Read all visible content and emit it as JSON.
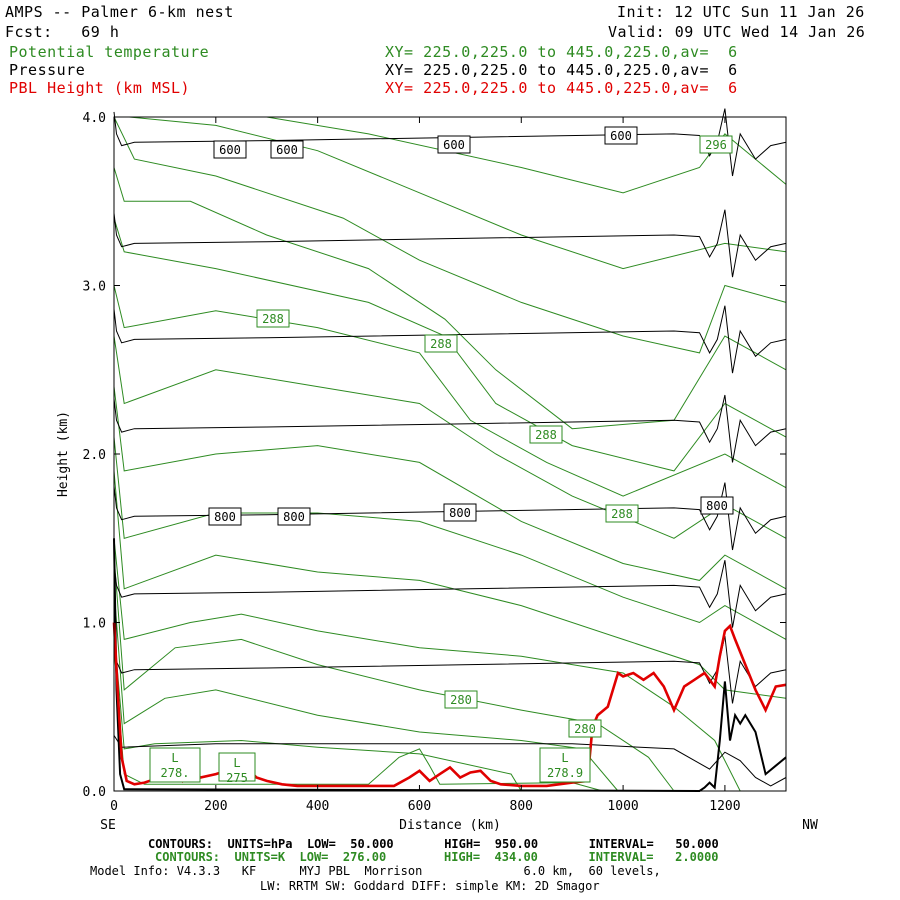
{
  "header": {
    "title": "AMPS -- Palmer 6-km nest",
    "fcst": "Fcst:   69 h",
    "init": "Init: 12 UTC Sun 11 Jan 26",
    "valid": "Valid: 09 UTC Wed 14 Jan 26",
    "fields": [
      {
        "name": "Potential temperature",
        "xy": "XY= 225.0,225.0 to 445.0,225.0,av=  6",
        "color": "#2e8b22"
      },
      {
        "name": "Pressure",
        "xy": "XY= 225.0,225.0 to 445.0,225.0,av=  6",
        "color": "#000000"
      },
      {
        "name": "PBL Height (km MSL)",
        "xy": "XY= 225.0,225.0 to 445.0,225.0,av=  6",
        "color": "#e00000"
      }
    ]
  },
  "footer": {
    "pressure_contours": "CONTOURS:  UNITS=hPa  LOW=  50.000       HIGH=  950.00       INTERVAL=   50.000",
    "theta_contours": "CONTOURS:  UNITS=K  LOW=  276.00        HIGH=  434.00       INTERVAL=   2.0000",
    "model_info_1": "Model Info: V4.3.3   KF      MYJ PBL  Morrison              6.0 km,  60 levels,",
    "model_info_2": "LW: RRTM SW: Goddard DIFF: simple KM: 2D Smagor"
  },
  "chart_data": {
    "type": "line",
    "xlabel": "Distance (km)",
    "ylabel": "Height (km)",
    "xlim": [
      0,
      1320
    ],
    "ylim": [
      0,
      4
    ],
    "x_ticks": [
      0,
      200,
      400,
      600,
      800,
      1000,
      1200
    ],
    "y_ticks": [
      "0.0",
      "1.0",
      "2.0",
      "3.0",
      "4.0"
    ],
    "x_left_label": "SE",
    "x_right_label": "NW",
    "pressure_labels": [
      "600",
      "600",
      "600",
      "600",
      "800",
      "800",
      "800",
      "800"
    ],
    "theta_labels": [
      "296",
      "288",
      "288",
      "288",
      "288",
      "280",
      "280"
    ],
    "low_labels": [
      "L",
      "L",
      "L"
    ],
    "low_values": [
      "278.",
      "275",
      "278.9"
    ],
    "series": [
      {
        "name": "PBL Height (km MSL)",
        "color": "#e00000",
        "x": [
          0,
          8,
          15,
          25,
          40,
          60,
          90,
          110,
          125,
          135,
          150,
          170,
          200,
          220,
          240,
          260,
          280,
          300,
          330,
          360,
          400,
          450,
          500,
          550,
          580,
          600,
          620,
          640,
          660,
          680,
          700,
          720,
          740,
          760,
          800,
          850,
          900,
          930,
          940,
          950,
          970,
          990,
          1000,
          1020,
          1040,
          1060,
          1080,
          1100,
          1120,
          1140,
          1160,
          1180,
          1190,
          1200,
          1210,
          1220,
          1240,
          1260,
          1280,
          1300,
          1320
        ],
        "y": [
          1.0,
          0.55,
          0.2,
          0.06,
          0.04,
          0.05,
          0.08,
          0.1,
          0.14,
          0.06,
          0.1,
          0.08,
          0.1,
          0.12,
          0.18,
          0.14,
          0.08,
          0.06,
          0.04,
          0.03,
          0.03,
          0.03,
          0.03,
          0.03,
          0.08,
          0.12,
          0.06,
          0.1,
          0.14,
          0.08,
          0.11,
          0.12,
          0.06,
          0.04,
          0.03,
          0.03,
          0.05,
          0.06,
          0.38,
          0.45,
          0.5,
          0.7,
          0.68,
          0.7,
          0.66,
          0.7,
          0.62,
          0.48,
          0.62,
          0.66,
          0.7,
          0.62,
          0.8,
          0.95,
          0.98,
          0.9,
          0.75,
          0.6,
          0.48,
          0.62,
          0.63
        ]
      },
      {
        "name": "Pressure",
        "levels_hPa": [
          950,
          900,
          850,
          800,
          750,
          700,
          650,
          600
        ],
        "mid_height_km": [
          0.28,
          0.72,
          1.17,
          1.63,
          2.15,
          2.68,
          3.25,
          3.85
        ]
      },
      {
        "name": "Potential temperature",
        "interval_K": 2,
        "labeled_values": [
          280,
          288,
          296
        ]
      }
    ]
  }
}
